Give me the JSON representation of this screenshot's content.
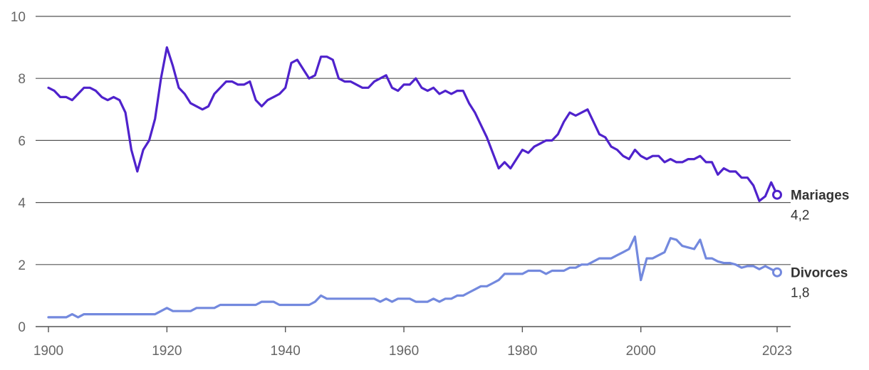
{
  "chart_data": {
    "type": "line",
    "title": "",
    "xlabel": "",
    "ylabel": "",
    "xlim": [
      1900,
      2023
    ],
    "ylim": [
      0,
      10
    ],
    "grid": true,
    "x_ticks": [
      1900,
      1920,
      1940,
      1960,
      1980,
      2000,
      2023
    ],
    "y_ticks": [
      0,
      2,
      4,
      6,
      8,
      10
    ],
    "series": [
      {
        "name": "Mariages",
        "end_label": "4,2",
        "color": "#4f22cc",
        "points": [
          [
            1900,
            7.7
          ],
          [
            1901,
            7.6
          ],
          [
            1902,
            7.4
          ],
          [
            1903,
            7.4
          ],
          [
            1904,
            7.3
          ],
          [
            1905,
            7.5
          ],
          [
            1906,
            7.7
          ],
          [
            1907,
            7.7
          ],
          [
            1908,
            7.6
          ],
          [
            1909,
            7.4
          ],
          [
            1910,
            7.3
          ],
          [
            1911,
            7.4
          ],
          [
            1912,
            7.3
          ],
          [
            1913,
            6.9
          ],
          [
            1914,
            5.7
          ],
          [
            1915,
            5.0
          ],
          [
            1916,
            5.7
          ],
          [
            1917,
            6.0
          ],
          [
            1918,
            6.7
          ],
          [
            1919,
            8.0
          ],
          [
            1920,
            9.0
          ],
          [
            1921,
            8.4
          ],
          [
            1922,
            7.7
          ],
          [
            1923,
            7.5
          ],
          [
            1924,
            7.2
          ],
          [
            1925,
            7.1
          ],
          [
            1926,
            7.0
          ],
          [
            1927,
            7.1
          ],
          [
            1928,
            7.5
          ],
          [
            1929,
            7.7
          ],
          [
            1930,
            7.9
          ],
          [
            1931,
            7.9
          ],
          [
            1932,
            7.8
          ],
          [
            1933,
            7.8
          ],
          [
            1934,
            7.9
          ],
          [
            1935,
            7.3
          ],
          [
            1936,
            7.1
          ],
          [
            1937,
            7.3
          ],
          [
            1938,
            7.4
          ],
          [
            1939,
            7.5
          ],
          [
            1940,
            7.7
          ],
          [
            1941,
            8.5
          ],
          [
            1942,
            8.6
          ],
          [
            1943,
            8.3
          ],
          [
            1944,
            8.0
          ],
          [
            1945,
            8.1
          ],
          [
            1946,
            8.7
          ],
          [
            1947,
            8.7
          ],
          [
            1948,
            8.6
          ],
          [
            1949,
            8.0
          ],
          [
            1950,
            7.9
          ],
          [
            1951,
            7.9
          ],
          [
            1952,
            7.8
          ],
          [
            1953,
            7.7
          ],
          [
            1954,
            7.7
          ],
          [
            1955,
            7.9
          ],
          [
            1956,
            8.0
          ],
          [
            1957,
            8.1
          ],
          [
            1958,
            7.7
          ],
          [
            1959,
            7.6
          ],
          [
            1960,
            7.8
          ],
          [
            1961,
            7.8
          ],
          [
            1962,
            8.0
          ],
          [
            1963,
            7.7
          ],
          [
            1964,
            7.6
          ],
          [
            1965,
            7.7
          ],
          [
            1966,
            7.5
          ],
          [
            1967,
            7.6
          ],
          [
            1968,
            7.5
          ],
          [
            1969,
            7.6
          ],
          [
            1970,
            7.6
          ],
          [
            1971,
            7.2
          ],
          [
            1972,
            6.9
          ],
          [
            1973,
            6.5
          ],
          [
            1974,
            6.1
          ],
          [
            1975,
            5.6
          ],
          [
            1976,
            5.1
          ],
          [
            1977,
            5.3
          ],
          [
            1978,
            5.1
          ],
          [
            1979,
            5.4
          ],
          [
            1980,
            5.7
          ],
          [
            1981,
            5.6
          ],
          [
            1982,
            5.8
          ],
          [
            1983,
            5.9
          ],
          [
            1984,
            6.0
          ],
          [
            1985,
            6.0
          ],
          [
            1986,
            6.2
          ],
          [
            1987,
            6.6
          ],
          [
            1988,
            6.9
          ],
          [
            1989,
            6.8
          ],
          [
            1990,
            6.9
          ],
          [
            1991,
            7.0
          ],
          [
            1992,
            6.6
          ],
          [
            1993,
            6.2
          ],
          [
            1994,
            6.1
          ],
          [
            1995,
            5.8
          ],
          [
            1996,
            5.7
          ],
          [
            1997,
            5.5
          ],
          [
            1998,
            5.4
          ],
          [
            1999,
            5.7
          ],
          [
            2000,
            5.5
          ],
          [
            2001,
            5.4
          ],
          [
            2002,
            5.5
          ],
          [
            2003,
            5.5
          ],
          [
            2004,
            5.3
          ],
          [
            2005,
            5.4
          ],
          [
            2006,
            5.3
          ],
          [
            2007,
            5.3
          ],
          [
            2008,
            5.4
          ],
          [
            2009,
            5.4
          ],
          [
            2010,
            5.5
          ],
          [
            2011,
            5.3
          ],
          [
            2012,
            5.3
          ],
          [
            2013,
            4.9
          ],
          [
            2014,
            5.1
          ],
          [
            2015,
            5.0
          ],
          [
            2016,
            5.0
          ],
          [
            2017,
            4.8
          ],
          [
            2018,
            4.8
          ],
          [
            2019,
            4.55
          ],
          [
            2020,
            4.05
          ],
          [
            2021,
            4.2
          ],
          [
            2022,
            4.65
          ],
          [
            2023,
            4.25
          ]
        ]
      },
      {
        "name": "Divorces",
        "end_label": "1,8",
        "color": "#7389de",
        "points": [
          [
            1900,
            0.3
          ],
          [
            1901,
            0.3
          ],
          [
            1902,
            0.3
          ],
          [
            1903,
            0.3
          ],
          [
            1904,
            0.4
          ],
          [
            1905,
            0.3
          ],
          [
            1906,
            0.4
          ],
          [
            1907,
            0.4
          ],
          [
            1908,
            0.4
          ],
          [
            1909,
            0.4
          ],
          [
            1910,
            0.4
          ],
          [
            1911,
            0.4
          ],
          [
            1912,
            0.4
          ],
          [
            1913,
            0.4
          ],
          [
            1914,
            0.4
          ],
          [
            1915,
            0.4
          ],
          [
            1916,
            0.4
          ],
          [
            1917,
            0.4
          ],
          [
            1918,
            0.4
          ],
          [
            1919,
            0.5
          ],
          [
            1920,
            0.6
          ],
          [
            1921,
            0.5
          ],
          [
            1922,
            0.5
          ],
          [
            1923,
            0.5
          ],
          [
            1924,
            0.5
          ],
          [
            1925,
            0.6
          ],
          [
            1926,
            0.6
          ],
          [
            1927,
            0.6
          ],
          [
            1928,
            0.6
          ],
          [
            1929,
            0.7
          ],
          [
            1930,
            0.7
          ],
          [
            1931,
            0.7
          ],
          [
            1932,
            0.7
          ],
          [
            1933,
            0.7
          ],
          [
            1934,
            0.7
          ],
          [
            1935,
            0.7
          ],
          [
            1936,
            0.8
          ],
          [
            1937,
            0.8
          ],
          [
            1938,
            0.8
          ],
          [
            1939,
            0.7
          ],
          [
            1940,
            0.7
          ],
          [
            1941,
            0.7
          ],
          [
            1942,
            0.7
          ],
          [
            1943,
            0.7
          ],
          [
            1944,
            0.7
          ],
          [
            1945,
            0.8
          ],
          [
            1946,
            1.0
          ],
          [
            1947,
            0.9
          ],
          [
            1948,
            0.9
          ],
          [
            1949,
            0.9
          ],
          [
            1950,
            0.9
          ],
          [
            1951,
            0.9
          ],
          [
            1952,
            0.9
          ],
          [
            1953,
            0.9
          ],
          [
            1954,
            0.9
          ],
          [
            1955,
            0.9
          ],
          [
            1956,
            0.8
          ],
          [
            1957,
            0.9
          ],
          [
            1958,
            0.8
          ],
          [
            1959,
            0.9
          ],
          [
            1960,
            0.9
          ],
          [
            1961,
            0.9
          ],
          [
            1962,
            0.8
          ],
          [
            1963,
            0.8
          ],
          [
            1964,
            0.8
          ],
          [
            1965,
            0.9
          ],
          [
            1966,
            0.8
          ],
          [
            1967,
            0.9
          ],
          [
            1968,
            0.9
          ],
          [
            1969,
            1.0
          ],
          [
            1970,
            1.0
          ],
          [
            1971,
            1.1
          ],
          [
            1972,
            1.2
          ],
          [
            1973,
            1.3
          ],
          [
            1974,
            1.3
          ],
          [
            1975,
            1.4
          ],
          [
            1976,
            1.5
          ],
          [
            1977,
            1.7
          ],
          [
            1978,
            1.7
          ],
          [
            1979,
            1.7
          ],
          [
            1980,
            1.7
          ],
          [
            1981,
            1.8
          ],
          [
            1982,
            1.8
          ],
          [
            1983,
            1.8
          ],
          [
            1984,
            1.7
          ],
          [
            1985,
            1.8
          ],
          [
            1986,
            1.8
          ],
          [
            1987,
            1.8
          ],
          [
            1988,
            1.9
          ],
          [
            1989,
            1.9
          ],
          [
            1990,
            2.0
          ],
          [
            1991,
            2.0
          ],
          [
            1992,
            2.1
          ],
          [
            1993,
            2.2
          ],
          [
            1994,
            2.2
          ],
          [
            1995,
            2.2
          ],
          [
            1996,
            2.3
          ],
          [
            1997,
            2.4
          ],
          [
            1998,
            2.5
          ],
          [
            1999,
            2.9
          ],
          [
            2000,
            1.5
          ],
          [
            2001,
            2.2
          ],
          [
            2002,
            2.2
          ],
          [
            2003,
            2.3
          ],
          [
            2004,
            2.4
          ],
          [
            2005,
            2.85
          ],
          [
            2006,
            2.8
          ],
          [
            2007,
            2.6
          ],
          [
            2008,
            2.55
          ],
          [
            2009,
            2.5
          ],
          [
            2010,
            2.8
          ],
          [
            2011,
            2.2
          ],
          [
            2012,
            2.2
          ],
          [
            2013,
            2.1
          ],
          [
            2014,
            2.05
          ],
          [
            2015,
            2.05
          ],
          [
            2016,
            2.0
          ],
          [
            2017,
            1.9
          ],
          [
            2018,
            1.95
          ],
          [
            2019,
            1.95
          ],
          [
            2020,
            1.85
          ],
          [
            2021,
            1.95
          ],
          [
            2022,
            1.85
          ],
          [
            2023,
            1.75
          ]
        ]
      }
    ]
  }
}
